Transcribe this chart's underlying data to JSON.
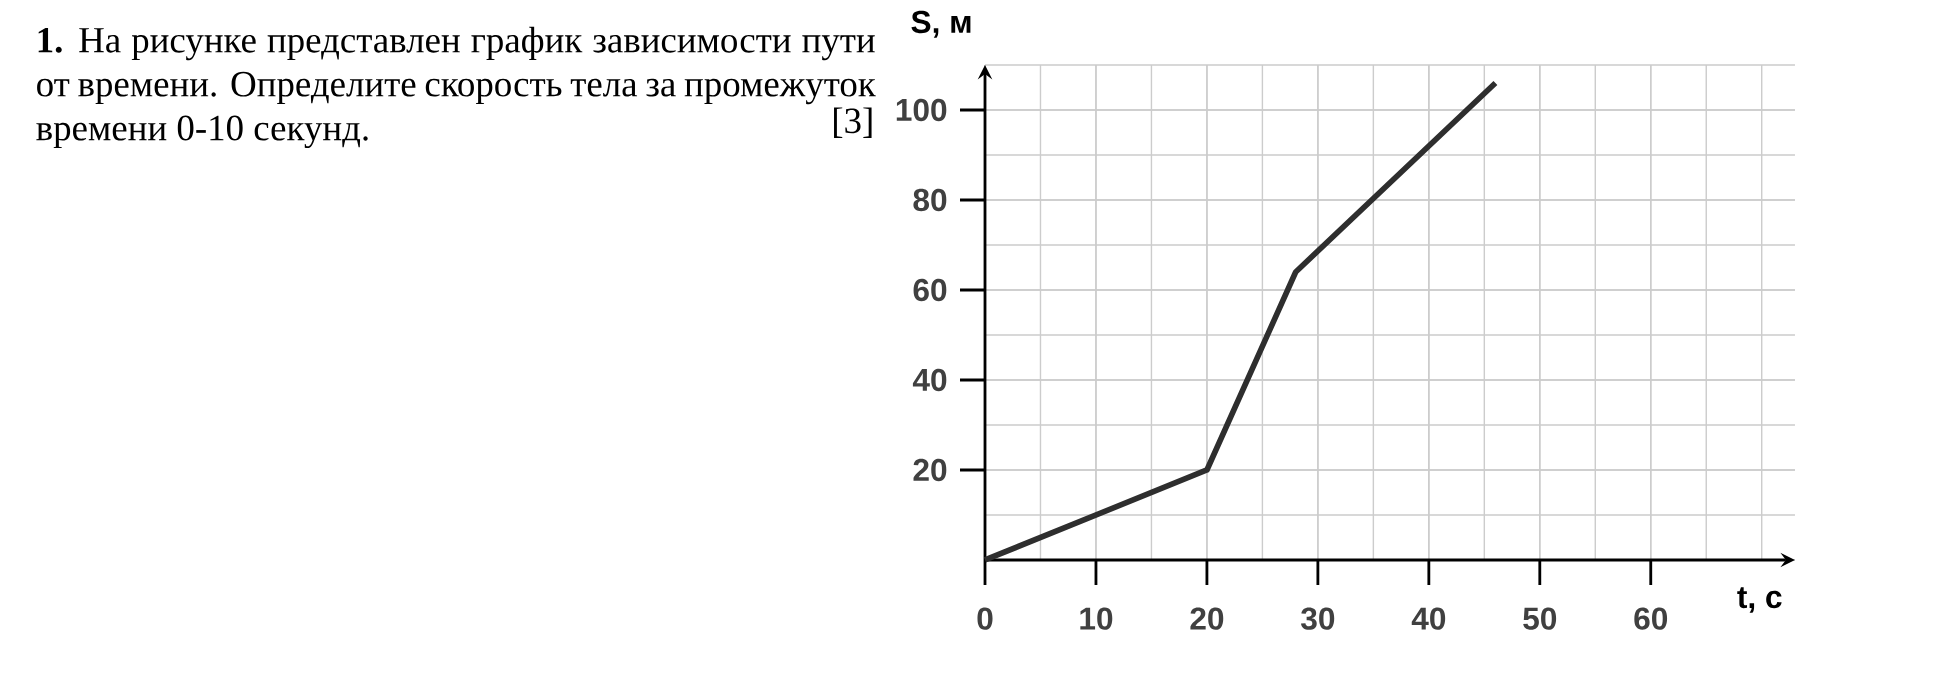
{
  "chart_data": {
    "type": "line",
    "title": "**1.** На рисунке представлен график зависимости пути от времени. Определите скорость тела за промежуток времени 0-10 секунд.",
    "annotations": [
      "[3]"
    ],
    "xlabel": "t, с",
    "ylabel": "S, м",
    "x": [
      0,
      20,
      28,
      46
    ],
    "values": [
      0,
      20,
      64,
      106
    ],
    "color": "#2e2e2e",
    "xlim": [
      0,
      73
    ],
    "ylim": [
      0,
      110
    ],
    "xticks": [
      0,
      10,
      20,
      30,
      40,
      50,
      60
    ],
    "yticks": [
      20,
      40,
      60,
      80,
      100
    ],
    "grid": true
  }
}
